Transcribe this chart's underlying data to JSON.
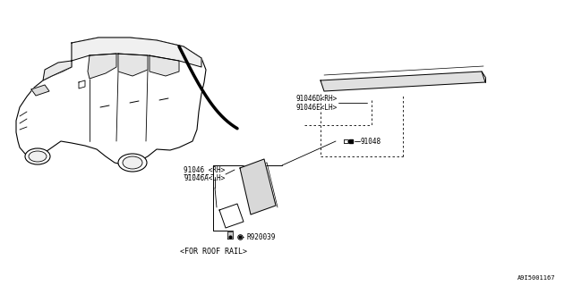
{
  "bg_color": "#ffffff",
  "line_color": "#000000",
  "text_color": "#000000",
  "diagram_id": "A9I5001167",
  "labels": {
    "part1": "91046D<RH>",
    "part1b": "91046E<LH>",
    "part2": "91046 <RH>",
    "part2b": "91046A<LH>",
    "part3": "91048",
    "part4": "R920039",
    "caption": "<FOR ROOF RAIL>"
  },
  "figsize": [
    6.4,
    3.2
  ],
  "dpi": 100
}
